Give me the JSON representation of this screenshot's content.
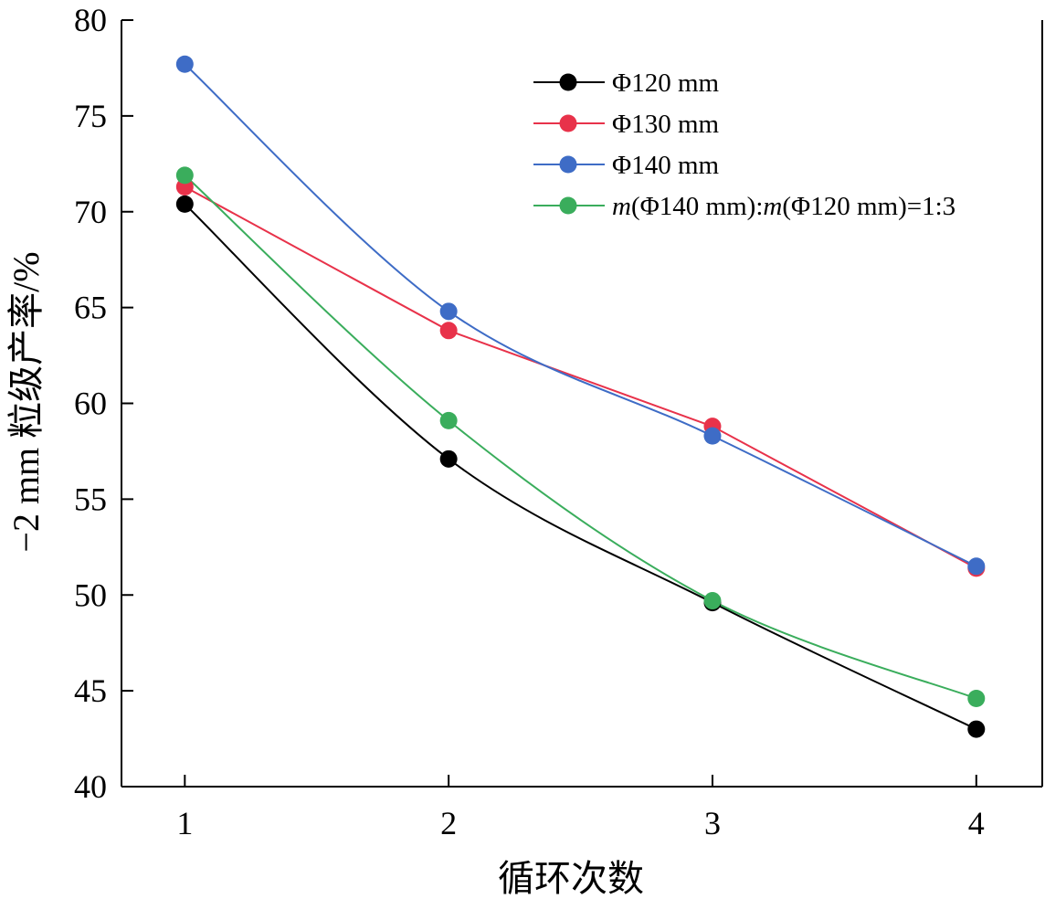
{
  "chart_data": {
    "type": "line",
    "xlabel": "循环次数",
    "ylabel": "−2 mm 粒级产率/%",
    "x": [
      1,
      2,
      3,
      4
    ],
    "xticks": [
      "1",
      "2",
      "3",
      "4"
    ],
    "xlim": [
      0.76,
      4.25
    ],
    "ylim": [
      40,
      80
    ],
    "yticks": [
      "40",
      "45",
      "50",
      "55",
      "60",
      "65",
      "70",
      "75",
      "80"
    ],
    "grid": false,
    "legend_position": "top-right",
    "series": [
      {
        "name": "Φ120 mm",
        "color": "#000000",
        "values": [
          70.4,
          57.1,
          49.6,
          43.0
        ],
        "line": "smooth"
      },
      {
        "name": "Φ130 mm",
        "color": "#e8324a",
        "values": [
          71.3,
          63.8,
          58.8,
          51.4
        ],
        "line": "straight"
      },
      {
        "name": "Φ140 mm",
        "color": "#3e6cc6",
        "values": [
          77.7,
          64.8,
          58.3,
          51.5
        ],
        "line": "smooth"
      },
      {
        "name": "m(Φ140 mm):m(Φ120 mm)=1:3",
        "color": "#3aad5c",
        "values": [
          71.9,
          59.1,
          49.7,
          44.6
        ],
        "line": "smooth"
      }
    ]
  }
}
